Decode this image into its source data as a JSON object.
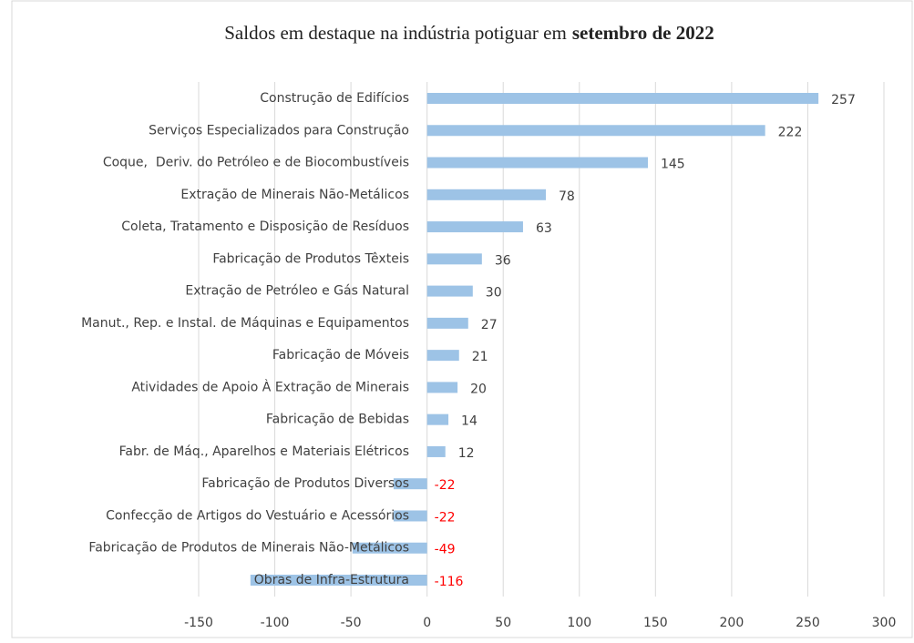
{
  "chart_data": {
    "type": "hbar",
    "title": {
      "text": "Saldos em destaque na indústria potiguar em",
      "emphasis": "setembro de 2022"
    },
    "categories": [
      "Construção de Edifícios",
      "Serviços Especializados para Construção",
      "Coque,  Deriv. do Petróleo e de Biocombustíveis",
      "Extração de Minerais Não-Metálicos",
      "Coleta, Tratamento e Disposição de Resíduos",
      "Fabricação de Produtos Têxteis",
      "Extração de Petróleo e Gás Natural",
      "Manut., Rep. e Instal. de Máquinas e Equipamentos",
      "Fabricação de Móveis",
      "Atividades de Apoio À Extração de Minerais",
      "Fabricação de Bebidas",
      "Fabr. de Máq., Aparelhos e Materiais Elétricos",
      "Fabricação de Produtos Diversos",
      "Confecção de Artigos do Vestuário e Acessórios",
      "Fabricação de Produtos de Minerais Não-Metálicos",
      "Obras de Infra-Estrutura"
    ],
    "values": [
      257,
      222,
      145,
      78,
      63,
      36,
      30,
      27,
      21,
      20,
      14,
      12,
      -22,
      -22,
      -49,
      -116
    ],
    "color": "#9dc3e6",
    "negative_label_color": "#ff0000",
    "xlim": [
      -150,
      300
    ],
    "xticks": [
      -150,
      -100,
      -50,
      0,
      50,
      100,
      150,
      200,
      250,
      300
    ],
    "grid": true
  }
}
